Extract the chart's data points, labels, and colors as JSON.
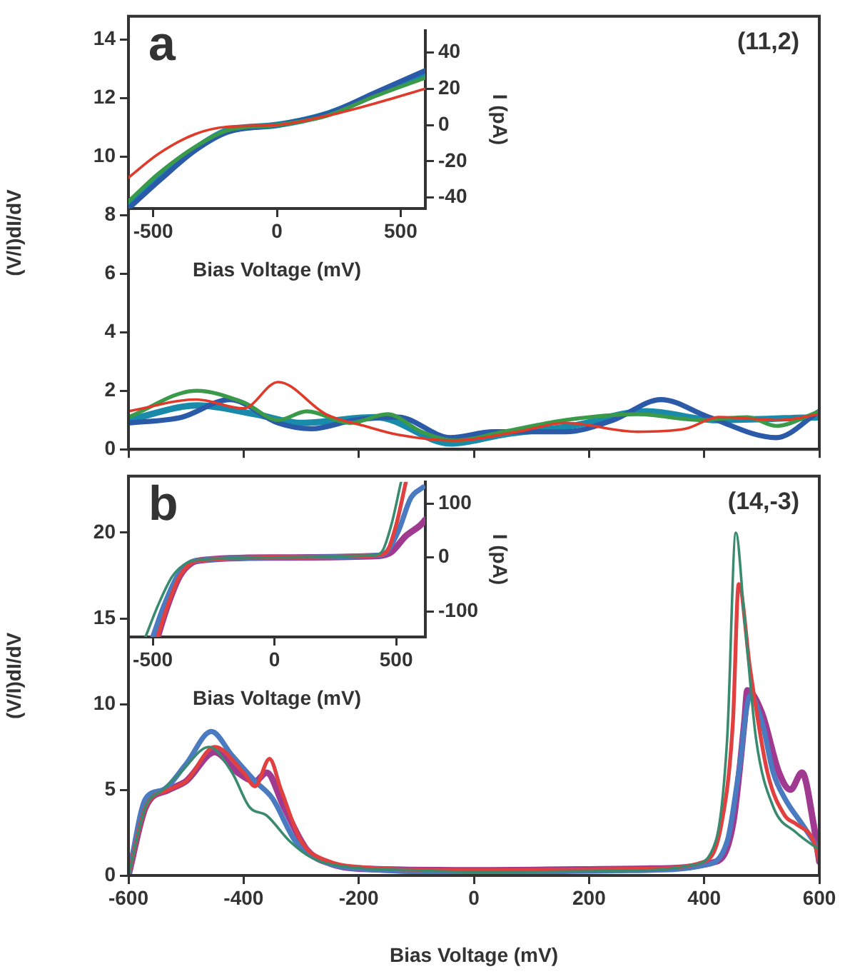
{
  "chart_data": [
    {
      "type": "line",
      "ylabel": "(V/I)dI/dV",
      "xlim": [
        -600,
        600
      ],
      "xticks": [
        -600,
        -400,
        -200,
        0,
        200,
        400,
        600
      ],
      "ylim": [
        0,
        14.8
      ],
      "yticks": [
        0,
        2,
        4,
        6,
        8,
        10,
        12,
        14
      ],
      "tick_labels": "y",
      "grid": false,
      "legend": false,
      "marker": "none",
      "annotations": [
        "a",
        "(11,2)"
      ],
      "series": [
        {
          "color": "#e03a2a",
          "x": [
            -600,
            -482,
            -400,
            -340,
            -257,
            -190,
            -132,
            -33,
            76,
            159,
            284,
            367,
            425,
            533,
            600
          ],
          "values": [
            1.3,
            1.7,
            1.4,
            2.3,
            1.2,
            0.8,
            0.5,
            0.3,
            0.6,
            0.9,
            0.6,
            0.7,
            1.1,
            1.0,
            1.2
          ]
        },
        {
          "color": "#3a9a4a",
          "x": [
            -600,
            -482,
            -400,
            -340,
            -290,
            -215,
            -150,
            -91,
            -33,
            51,
            159,
            284,
            392,
            475,
            525,
            600
          ],
          "values": [
            1.1,
            2.0,
            1.6,
            1.0,
            1.3,
            0.9,
            1.2,
            0.6,
            0.3,
            0.6,
            1.0,
            1.2,
            1.0,
            1.1,
            0.8,
            1.3
          ]
        },
        {
          "color": "#2a5aa8",
          "x": [
            -600,
            -507,
            -424,
            -340,
            -282,
            -207,
            -132,
            -41,
            34,
            159,
            242,
            325,
            408,
            525,
            600
          ],
          "values": [
            0.9,
            1.1,
            1.7,
            0.9,
            0.7,
            1.0,
            1.1,
            0.4,
            0.6,
            0.6,
            1.0,
            1.7,
            1.1,
            0.4,
            1.3
          ]
        },
        {
          "color": "#1a8aaa",
          "x": [
            -600,
            -480,
            -380,
            -300,
            -170,
            -40,
            50,
            170,
            300,
            420,
            600
          ],
          "values": [
            1.0,
            1.5,
            1.2,
            0.9,
            1.1,
            0.2,
            0.5,
            0.8,
            1.3,
            1.0,
            1.1
          ]
        }
      ]
    },
    {
      "type": "line",
      "xlabel": "Bias Voltage (mV)",
      "ylabel": "I (pA)",
      "xlim": [
        -600,
        600
      ],
      "xticks": [
        -500,
        0,
        500
      ],
      "ylim": [
        -46,
        52
      ],
      "yticks": [
        -40,
        -20,
        0,
        20,
        40
      ],
      "grid": false,
      "legend": false,
      "marker": "none",
      "series": [
        {
          "color": "#e03a2a",
          "x": [
            -600,
            -480,
            -330,
            -200,
            0,
            200,
            400,
            600
          ],
          "values": [
            -29,
            -16,
            -5,
            -1,
            0,
            5,
            12,
            20
          ]
        },
        {
          "color": "#3a9a4a",
          "x": [
            -600,
            -480,
            -330,
            -200,
            0,
            200,
            400,
            600
          ],
          "values": [
            -42,
            -27,
            -12,
            -3,
            0,
            5,
            16,
            26
          ]
        },
        {
          "color": "#2a5aa8",
          "x": [
            -600,
            -470,
            -330,
            -200,
            0,
            200,
            400,
            600
          ],
          "values": [
            -46,
            -30,
            -14,
            -4,
            0,
            6,
            18,
            30
          ]
        },
        {
          "color": "#1a8aaa",
          "x": [
            -600,
            -480,
            -330,
            -200,
            0,
            200,
            400,
            600
          ],
          "values": [
            -44,
            -28,
            -13,
            -3,
            0,
            6,
            17,
            28
          ]
        }
      ]
    },
    {
      "type": "line",
      "xlabel": "Bias Voltage (mV)",
      "ylabel": "(V/I)dI/dV",
      "xlim": [
        -600,
        600
      ],
      "xticks": [
        -600,
        -400,
        -200,
        0,
        200,
        400,
        600
      ],
      "ylim": [
        0,
        23.3
      ],
      "yticks": [
        0,
        5,
        10,
        15,
        20
      ],
      "grid": false,
      "legend": false,
      "marker": "none",
      "annotations": [
        "b",
        "(14,-3)"
      ],
      "series": [
        {
          "color": "#3a8a70",
          "x": [
            -600,
            -570,
            -540,
            -510,
            -460,
            -420,
            -390,
            -360,
            -320,
            -280,
            -220,
            -100,
            0,
            300,
            380,
            420,
            440,
            455,
            470,
            490,
            520,
            560,
            600
          ],
          "values": [
            0,
            4,
            5,
            6,
            7.5,
            6,
            4,
            3.5,
            2,
            1,
            0.5,
            0.3,
            0.2,
            0.3,
            0.6,
            2,
            8,
            20,
            15,
            8,
            4,
            2.5,
            1.5
          ]
        },
        {
          "color": "#e04040",
          "x": [
            -600,
            -570,
            -530,
            -500,
            -450,
            -400,
            -380,
            -355,
            -335,
            -300,
            -250,
            -200,
            0,
            300,
            400,
            430,
            450,
            460,
            480,
            510,
            540,
            560,
            590,
            600
          ],
          "values": [
            0,
            4,
            5,
            5.5,
            7.5,
            6,
            5.2,
            6.8,
            5,
            2,
            0.8,
            0.5,
            0.3,
            0.4,
            0.8,
            3,
            9,
            17,
            12,
            6,
            3.5,
            3,
            2,
            0.8
          ]
        },
        {
          "color": "#4a7ac0",
          "x": [
            -600,
            -570,
            -540,
            -500,
            -456,
            -420,
            -380,
            -350,
            -310,
            -260,
            -200,
            0,
            300,
            400,
            440,
            460,
            480,
            500,
            520,
            540,
            570,
            600
          ],
          "values": [
            0,
            4.5,
            5,
            6.5,
            8.4,
            7,
            5.5,
            4.5,
            2,
            0.8,
            0.4,
            0.2,
            0.3,
            0.6,
            2,
            6,
            10.5,
            9,
            6,
            4.5,
            3,
            1.5
          ]
        },
        {
          "color": "#a03a90",
          "x": [
            -600,
            -570,
            -530,
            -500,
            -450,
            -410,
            -380,
            -360,
            -330,
            -290,
            -250,
            -200,
            0,
            300,
            420,
            450,
            470,
            475,
            500,
            530,
            550,
            570,
            590,
            600
          ],
          "values": [
            0,
            4,
            5,
            5.5,
            7.2,
            6,
            5.5,
            6,
            4,
            1.5,
            0.7,
            0.4,
            0.3,
            0.4,
            0.8,
            3,
            9,
            10.8,
            9.5,
            6,
            5,
            6,
            3,
            0.8
          ]
        }
      ]
    },
    {
      "type": "line",
      "xlabel": "Bias Voltage (mV)",
      "ylabel": "I (pA)",
      "xlim": [
        -600,
        620
      ],
      "xticks": [
        -500,
        0,
        500
      ],
      "ylim": [
        -147,
        140
      ],
      "yticks": [
        -100,
        0,
        100
      ],
      "grid": false,
      "legend": false,
      "marker": "none",
      "series": [
        {
          "color": "#3a8a70",
          "x": [
            -530,
            -480,
            -420,
            -360,
            -300,
            0,
            400,
            440,
            480,
            520
          ],
          "values": [
            -147,
            -90,
            -35,
            -10,
            -4,
            0,
            4,
            10,
            60,
            140
          ]
        },
        {
          "color": "#e04040",
          "x": [
            -480,
            -440,
            -390,
            -340,
            -300,
            0,
            420,
            460,
            500,
            540
          ],
          "values": [
            -147,
            -90,
            -35,
            -10,
            -5,
            0,
            4,
            10,
            60,
            140
          ]
        },
        {
          "color": "#4a7ac0",
          "x": [
            -500,
            -455,
            -400,
            -350,
            -300,
            0,
            420,
            460,
            510,
            560,
            610
          ],
          "values": [
            -147,
            -90,
            -35,
            -10,
            -5,
            0,
            4,
            10,
            50,
            110,
            130
          ]
        },
        {
          "color": "#a03a90",
          "x": [
            -480,
            -440,
            -390,
            -340,
            -300,
            0,
            430,
            480,
            540,
            600,
            620
          ],
          "values": [
            -147,
            -90,
            -35,
            -10,
            -5,
            0,
            3,
            10,
            40,
            60,
            70
          ]
        }
      ]
    }
  ]
}
